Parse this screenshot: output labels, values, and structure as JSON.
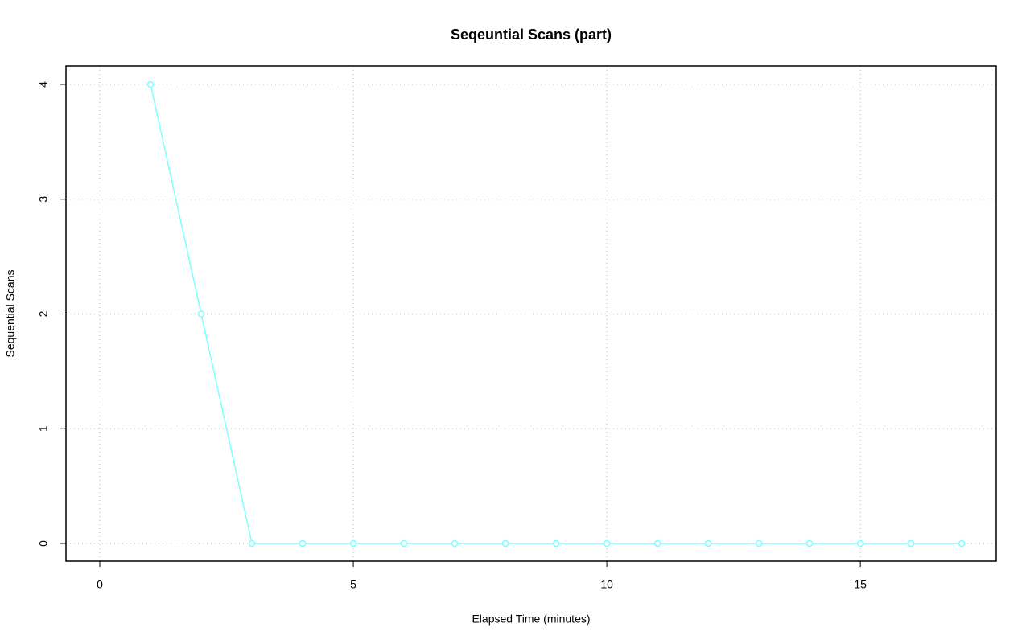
{
  "chart_data": {
    "type": "line",
    "title": "Seqeuntial Scans (part)",
    "x_label": "Elapsed Time (minutes)",
    "y_label": "Sequential Scans",
    "x": [
      1,
      2,
      3,
      4,
      5,
      6,
      7,
      8,
      9,
      10,
      11,
      12,
      13,
      14,
      15,
      16,
      17
    ],
    "series": [
      {
        "name": null,
        "color": "#7fffff",
        "values": [
          4,
          2,
          0,
          0,
          0,
          0,
          0,
          0,
          0,
          0,
          0,
          0,
          0,
          0,
          0,
          0,
          0
        ]
      }
    ],
    "xlim": [
      -0.667,
      17.68
    ],
    "xticks": [
      0,
      5,
      10,
      15
    ],
    "ylim": [
      -0.154,
      4.161
    ],
    "yticks": [
      0,
      1,
      2,
      3,
      4
    ],
    "grid": true,
    "markers": true
  }
}
